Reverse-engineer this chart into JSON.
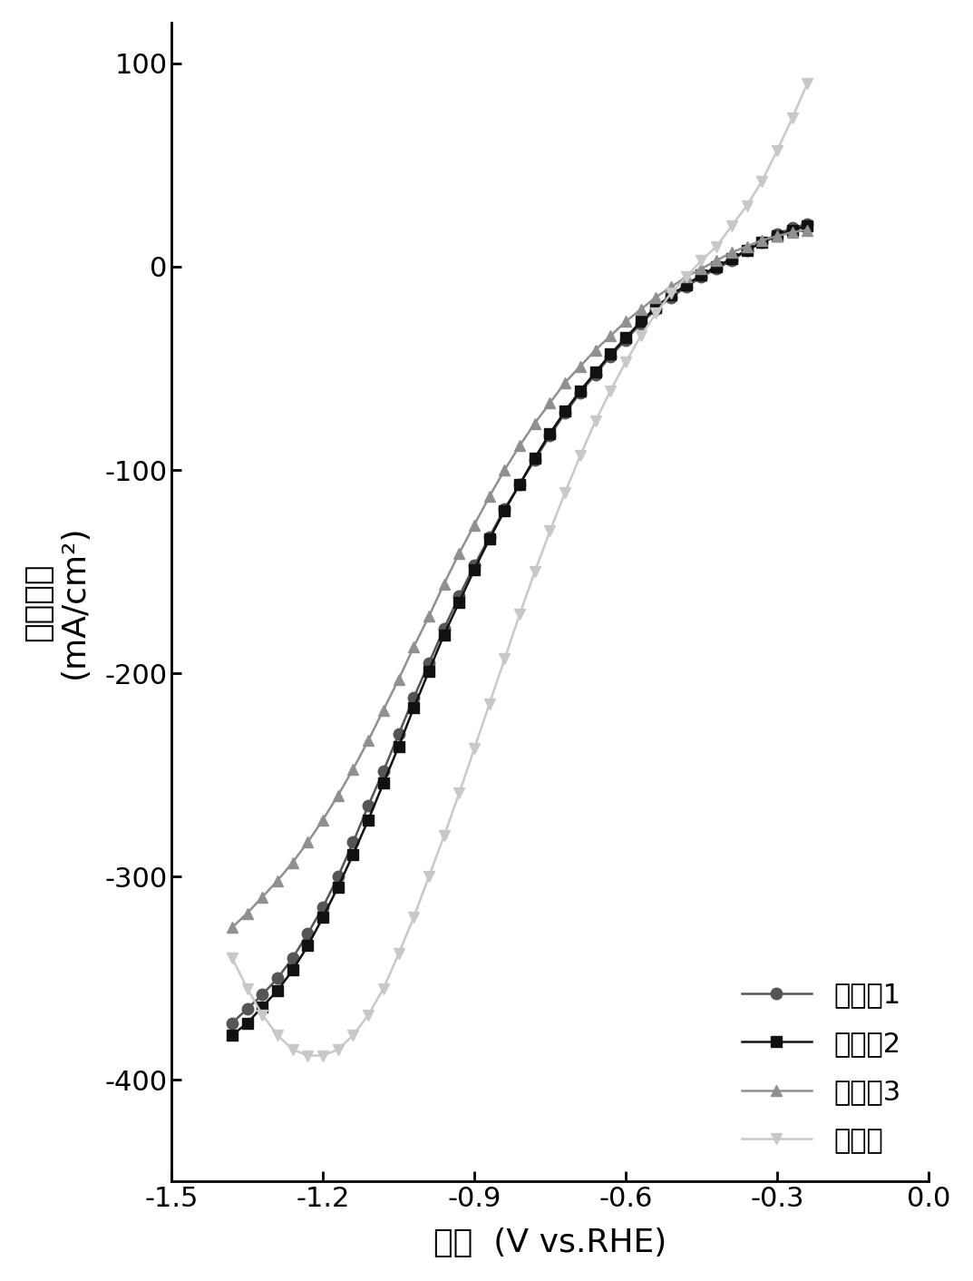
{
  "xlabel": "电压  (V vs.RHE)",
  "ylabel_line1": "电流密度",
  "ylabel_line2": "(mA/cm²)",
  "xlim": [
    -1.5,
    0.0
  ],
  "ylim": [
    -450,
    120
  ],
  "xticks": [
    -1.5,
    -1.2,
    -0.9,
    -0.6,
    -0.3,
    0.0
  ],
  "yticks": [
    -400,
    -300,
    -200,
    -100,
    0,
    100
  ],
  "series": [
    {
      "label": "实施例1",
      "color": "#555555",
      "marker": "o",
      "markersize": 9,
      "linewidth": 1.8,
      "x": [
        -1.38,
        -1.35,
        -1.32,
        -1.29,
        -1.26,
        -1.23,
        -1.2,
        -1.17,
        -1.14,
        -1.11,
        -1.08,
        -1.05,
        -1.02,
        -0.99,
        -0.96,
        -0.93,
        -0.9,
        -0.87,
        -0.84,
        -0.81,
        -0.78,
        -0.75,
        -0.72,
        -0.69,
        -0.66,
        -0.63,
        -0.6,
        -0.57,
        -0.54,
        -0.51,
        -0.48,
        -0.45,
        -0.42,
        -0.39,
        -0.36,
        -0.33,
        -0.3,
        -0.27,
        -0.24
      ],
      "y": [
        -372,
        -365,
        -358,
        -350,
        -340,
        -328,
        -315,
        -300,
        -283,
        -265,
        -248,
        -230,
        -212,
        -195,
        -178,
        -162,
        -147,
        -133,
        -119,
        -107,
        -95,
        -83,
        -72,
        -62,
        -53,
        -44,
        -36,
        -28,
        -21,
        -15,
        -10,
        -5,
        -1,
        3,
        8,
        12,
        16,
        19,
        21
      ]
    },
    {
      "label": "实施例2",
      "color": "#111111",
      "marker": "s",
      "markersize": 9,
      "linewidth": 1.8,
      "x": [
        -1.38,
        -1.35,
        -1.32,
        -1.29,
        -1.26,
        -1.23,
        -1.2,
        -1.17,
        -1.14,
        -1.11,
        -1.08,
        -1.05,
        -1.02,
        -0.99,
        -0.96,
        -0.93,
        -0.9,
        -0.87,
        -0.84,
        -0.81,
        -0.78,
        -0.75,
        -0.72,
        -0.69,
        -0.66,
        -0.63,
        -0.6,
        -0.57,
        -0.54,
        -0.51,
        -0.48,
        -0.45,
        -0.42,
        -0.39,
        -0.36,
        -0.33,
        -0.3,
        -0.27,
        -0.24
      ],
      "y": [
        -378,
        -372,
        -364,
        -356,
        -346,
        -334,
        -320,
        -305,
        -289,
        -272,
        -254,
        -236,
        -217,
        -199,
        -181,
        -165,
        -149,
        -134,
        -120,
        -107,
        -94,
        -82,
        -71,
        -61,
        -52,
        -43,
        -35,
        -27,
        -20,
        -14,
        -9,
        -4,
        0,
        4,
        8,
        12,
        15,
        18,
        20
      ]
    },
    {
      "label": "实施例3",
      "color": "#909090",
      "marker": "^",
      "markersize": 9,
      "linewidth": 1.8,
      "x": [
        -1.38,
        -1.35,
        -1.32,
        -1.29,
        -1.26,
        -1.23,
        -1.2,
        -1.17,
        -1.14,
        -1.11,
        -1.08,
        -1.05,
        -1.02,
        -0.99,
        -0.96,
        -0.93,
        -0.9,
        -0.87,
        -0.84,
        -0.81,
        -0.78,
        -0.75,
        -0.72,
        -0.69,
        -0.66,
        -0.63,
        -0.6,
        -0.57,
        -0.54,
        -0.51,
        -0.48,
        -0.45,
        -0.42,
        -0.39,
        -0.36,
        -0.33,
        -0.3,
        -0.27,
        -0.24
      ],
      "y": [
        -325,
        -318,
        -310,
        -302,
        -293,
        -283,
        -272,
        -260,
        -247,
        -233,
        -218,
        -203,
        -187,
        -172,
        -156,
        -141,
        -127,
        -113,
        -100,
        -88,
        -77,
        -67,
        -57,
        -49,
        -41,
        -34,
        -27,
        -21,
        -15,
        -10,
        -5,
        -1,
        3,
        7,
        10,
        13,
        15,
        17,
        18
      ]
    },
    {
      "label": "对比例",
      "color": "#c8c8c8",
      "marker": "v",
      "markersize": 9,
      "linewidth": 1.8,
      "x": [
        -1.38,
        -1.35,
        -1.32,
        -1.29,
        -1.26,
        -1.23,
        -1.2,
        -1.17,
        -1.14,
        -1.11,
        -1.08,
        -1.05,
        -1.02,
        -0.99,
        -0.96,
        -0.93,
        -0.9,
        -0.87,
        -0.84,
        -0.81,
        -0.78,
        -0.75,
        -0.72,
        -0.69,
        -0.66,
        -0.63,
        -0.6,
        -0.57,
        -0.54,
        -0.51,
        -0.48,
        -0.45,
        -0.42,
        -0.39,
        -0.36,
        -0.33,
        -0.3,
        -0.27,
        -0.24
      ],
      "y": [
        -340,
        -355,
        -368,
        -378,
        -385,
        -388,
        -388,
        -385,
        -378,
        -368,
        -355,
        -338,
        -320,
        -300,
        -280,
        -259,
        -237,
        -215,
        -193,
        -171,
        -150,
        -130,
        -111,
        -93,
        -76,
        -61,
        -47,
        -34,
        -23,
        -13,
        -5,
        3,
        10,
        20,
        30,
        42,
        57,
        73,
        90
      ]
    }
  ],
  "legend_loc": "lower right",
  "background_color": "#ffffff",
  "tick_fontsize": 22,
  "label_fontsize": 26,
  "legend_fontsize": 22
}
